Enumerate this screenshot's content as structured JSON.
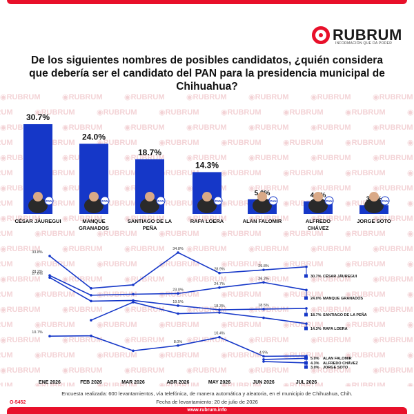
{
  "brand": {
    "name": "RUBRUM",
    "tagline": "INFORMACIÓN QUE DA PODER",
    "accent": "#e8102a",
    "bar_color": "#1537c8",
    "website": "www.rubrum.info",
    "code": "O-5452"
  },
  "title": "De los siguientes nombres de posibles candidatos, ¿quién considera que debería ser el candidato del PAN para la presidencia municipal de Chihuahua?",
  "watermark_text": "RUBRUM",
  "party_badge": "PAN",
  "chart_data": [
    {
      "type": "bar",
      "categories": [
        "CÉSAR JÁUREGUI",
        "MANQUE GRANADOS",
        "SANTIAGO DE LA PEÑA",
        "RAFA LOERA",
        "ALAN FALOMIR",
        "ALFREDO CHÁVEZ",
        "JORGE SOTO"
      ],
      "category_lines": [
        [
          "CÉSAR JÁUREGUI"
        ],
        [
          "MANQUE",
          "GRANADOS"
        ],
        [
          "SANTIAGO DE LA",
          "PEÑA"
        ],
        [
          "RAFA LOERA"
        ],
        [
          "ALAN FALOMIR"
        ],
        [
          "ALFREDO",
          "CHÁVEZ"
        ],
        [
          "JORGE SOTO"
        ]
      ],
      "values": [
        30.7,
        24.0,
        18.7,
        14.3,
        5.0,
        4.3,
        3.0
      ],
      "value_labels": [
        "30.7%",
        "24.0%",
        "18.7%",
        "14.3%",
        "5.0%",
        "4.3%",
        "3.0%"
      ],
      "ylim": [
        0,
        32
      ]
    },
    {
      "type": "line",
      "x": [
        "ENE 2026",
        "FEB 2026",
        "MAR 2026",
        "ABR 2026",
        "MAY 2026",
        "JUN 2026",
        "JUL 2026"
      ],
      "ylim": [
        0,
        36
      ],
      "series": [
        {
          "name": "CÉSAR JÁUREGUI",
          "values": [
            33.8,
            24.5,
            25.5,
            34.8,
            28.9,
            29.8,
            30.7
          ],
          "labels": [
            "33.8%",
            "",
            "",
            "34.8%",
            "28.9%",
            "29.8%",
            "30.7%"
          ]
        },
        {
          "name": "MANQUE GRANADOS",
          "values": [
            28.2,
            22.5,
            22.8,
            23.0,
            24.7,
            26.2,
            24.0
          ],
          "labels": [
            "28.2%",
            "",
            "",
            "23.0%",
            "24.7%",
            "26.2%",
            "24.0%"
          ]
        },
        {
          "name": "SANTIAGO DE LA PEÑA",
          "values": [
            27.6,
            20.8,
            21.0,
            19.5,
            18.3,
            18.5,
            18.7
          ],
          "labels": [
            "27.6%",
            "",
            "",
            "19.5%",
            "18.3%",
            "18.5%",
            "18.7%"
          ]
        },
        {
          "name": "RAFA LOERA",
          "values": [
            null,
            15.3,
            20.5,
            17.2,
            17.5,
            16.0,
            14.3
          ],
          "labels": [
            "",
            "",
            "",
            "",
            "",
            "",
            "14.3%"
          ]
        },
        {
          "name": "ALAN FALOMIR",
          "values": [
            10.7,
            10.8,
            6.5,
            8.0,
            10.4,
            4.9,
            5.0
          ],
          "labels": [
            "10.7%",
            "",
            "",
            "8.0%",
            "10.4%",
            "4.9%",
            "5.0%"
          ]
        },
        {
          "name": "ALFREDO CHÁVEZ",
          "values": [
            null,
            null,
            null,
            null,
            null,
            4.0,
            4.3
          ],
          "labels": [
            "",
            "",
            "",
            "",
            "",
            "",
            "4.3%"
          ]
        },
        {
          "name": "JORGE SOTO",
          "values": [
            null,
            null,
            null,
            null,
            null,
            3.4,
            3.0
          ],
          "labels": [
            "",
            "",
            "",
            "",
            "",
            "",
            "3.0%"
          ]
        }
      ]
    }
  ],
  "footer": {
    "note": "Encuesta realizada: 600 levantamientos, vía telefónica, de manera automática y aleatoria, en el municipio de Chihuahua, Chih.",
    "date": "Fecha de levantamiento: 20 de julio de 2026"
  }
}
